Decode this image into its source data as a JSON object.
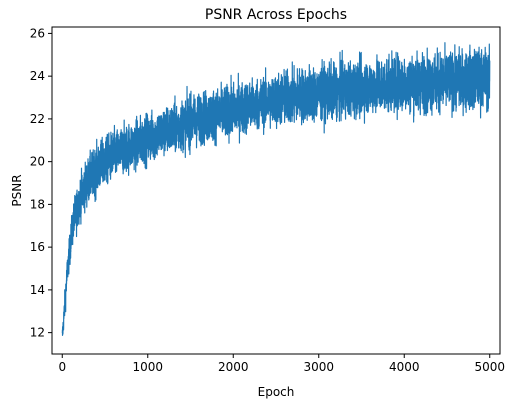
{
  "chart_data": {
    "type": "line",
    "title": "PSNR Across Epochs",
    "xlabel": "Epoch",
    "ylabel": "PSNR",
    "xlim": [
      -120,
      5120
    ],
    "ylim": [
      11.0,
      26.3
    ],
    "xticks": [
      0,
      1000,
      2000,
      3000,
      4000,
      5000
    ],
    "xtick_labels": [
      "0",
      "1000",
      "2000",
      "3000",
      "4000",
      "5000"
    ],
    "yticks": [
      12,
      14,
      16,
      18,
      20,
      22,
      24,
      26
    ],
    "ytick_labels": [
      "12",
      "14",
      "16",
      "18",
      "20",
      "22",
      "24",
      "26"
    ],
    "grid": false,
    "legend": "none",
    "series": [
      {
        "color": "#1f77b4",
        "x": [
          0,
          20,
          40,
          60,
          80,
          100,
          120,
          150,
          180,
          200,
          250,
          300,
          400,
          500,
          600,
          700,
          800,
          900,
          1000,
          1200,
          1400,
          1600,
          1800,
          2000,
          2200,
          2400,
          2600,
          2800,
          3000,
          3200,
          3400,
          3600,
          3800,
          4000,
          4200,
          4400,
          4600,
          4800,
          5000
        ],
        "mean": [
          11.8,
          12.8,
          13.9,
          14.9,
          15.6,
          16.3,
          16.9,
          17.5,
          17.9,
          18.2,
          18.7,
          19.1,
          19.6,
          20.0,
          20.3,
          20.5,
          20.7,
          20.9,
          21.1,
          21.4,
          21.7,
          22.0,
          22.2,
          22.4,
          22.6,
          22.8,
          22.95,
          23.1,
          23.2,
          23.3,
          23.4,
          23.5,
          23.6,
          23.65,
          23.7,
          23.75,
          23.8,
          23.85,
          23.9
        ],
        "spread": [
          0.3,
          0.4,
          0.5,
          0.5,
          0.5,
          0.6,
          0.6,
          0.7,
          0.7,
          0.7,
          0.75,
          0.75,
          0.8,
          0.8,
          0.8,
          0.8,
          0.8,
          0.8,
          0.8,
          0.8,
          0.85,
          0.85,
          0.85,
          0.85,
          0.85,
          0.85,
          0.9,
          0.9,
          0.9,
          0.9,
          0.9,
          0.9,
          0.9,
          0.95,
          0.95,
          0.95,
          0.95,
          1.0,
          1.0
        ],
        "points": 5000
      }
    ]
  }
}
